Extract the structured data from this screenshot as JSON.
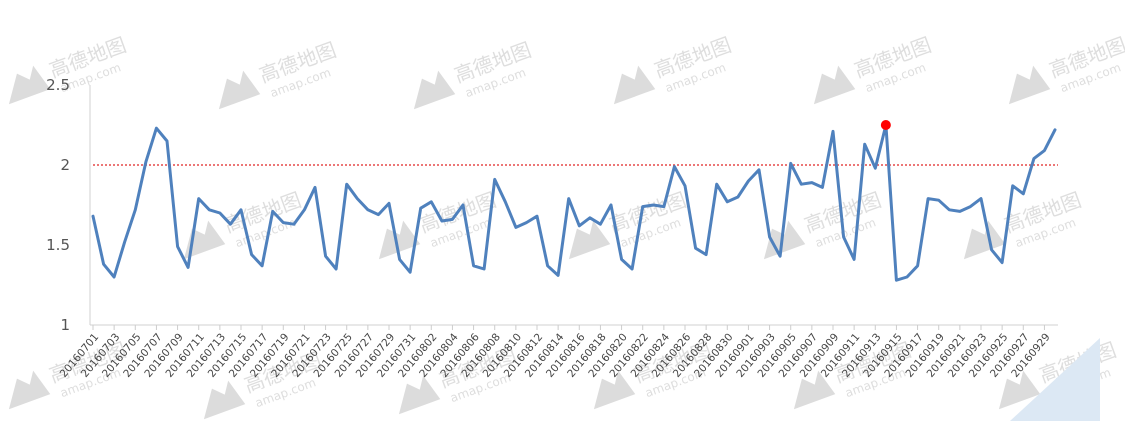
{
  "chart_data": {
    "type": "line",
    "title": "",
    "xlabel": "",
    "ylabel": "",
    "ylim": [
      1,
      2.5
    ],
    "yticks": [
      "1",
      "1.5",
      "2",
      "2.5"
    ],
    "grid": false,
    "legend": "none",
    "threshold": {
      "value": 2,
      "color": "#e02424",
      "style": "dotted"
    },
    "highlight": {
      "x": "20160914",
      "y": 2.25,
      "color": "#ff0000"
    },
    "line_color": "#4f81bd",
    "x": [
      "20160701",
      "20160702",
      "20160703",
      "20160704",
      "20160705",
      "20160706",
      "20160707",
      "20160708",
      "20160709",
      "20160710",
      "20160711",
      "20160712",
      "20160713",
      "20160714",
      "20160715",
      "20160716",
      "20160717",
      "20160718",
      "20160719",
      "20160720",
      "20160721",
      "20160722",
      "20160723",
      "20160724",
      "20160725",
      "20160726",
      "20160727",
      "20160728",
      "20160729",
      "20160730",
      "20160731",
      "20160801",
      "20160802",
      "20160803",
      "20160804",
      "20160805",
      "20160806",
      "20160807",
      "20160808",
      "20160809",
      "20160810",
      "20160811",
      "20160812",
      "20160813",
      "20160814",
      "20160815",
      "20160816",
      "20160817",
      "20160818",
      "20160819",
      "20160820",
      "20160821",
      "20160822",
      "20160823",
      "20160824",
      "20160825",
      "20160826",
      "20160827",
      "20160828",
      "20160829",
      "20160830",
      "20160831",
      "20160901",
      "20160902",
      "20160903",
      "20160904",
      "20160905",
      "20160906",
      "20160907",
      "20160908",
      "20160909",
      "20160910",
      "20160911",
      "20160912",
      "20160913",
      "20160914",
      "20160915",
      "20160916",
      "20160917",
      "20160918",
      "20160919",
      "20160920",
      "20160921",
      "20160922",
      "20160923",
      "20160924",
      "20160925",
      "20160926",
      "20160927",
      "20160928",
      "20160929",
      "20160930"
    ],
    "xtick_labels": [
      "20160701",
      "20160703",
      "20160705",
      "20160707",
      "20160709",
      "20160711",
      "20160713",
      "20160715",
      "20160717",
      "20160719",
      "20160721",
      "20160723",
      "20160725",
      "20160727",
      "20160729",
      "20160731",
      "20160802",
      "20160804",
      "20160806",
      "20160808",
      "20160810",
      "20160812",
      "20160814",
      "20160816",
      "20160818",
      "20160820",
      "20160822",
      "20160824",
      "20160826",
      "20160828",
      "20160830",
      "20160901",
      "20160903",
      "20160905",
      "20160907",
      "20160909",
      "20160911",
      "20160913",
      "20160915",
      "20160917",
      "20160919",
      "20160921",
      "20160923",
      "20160925",
      "20160927",
      "20160929"
    ],
    "series": [
      {
        "values": [
          1.68,
          1.38,
          1.3,
          1.52,
          1.72,
          2.02,
          2.23,
          2.15,
          1.49,
          1.36,
          1.79,
          1.72,
          1.7,
          1.63,
          1.72,
          1.44,
          1.37,
          1.71,
          1.64,
          1.63,
          1.72,
          1.86,
          1.43,
          1.35,
          1.88,
          1.79,
          1.72,
          1.69,
          1.76,
          1.41,
          1.33,
          1.73,
          1.77,
          1.65,
          1.66,
          1.75,
          1.37,
          1.35,
          1.91,
          1.77,
          1.61,
          1.64,
          1.68,
          1.37,
          1.31,
          1.79,
          1.62,
          1.67,
          1.63,
          1.75,
          1.41,
          1.35,
          1.74,
          1.75,
          1.74,
          1.99,
          1.87,
          1.48,
          1.44,
          1.88,
          1.77,
          1.8,
          1.9,
          1.97,
          1.55,
          1.43,
          2.01,
          1.88,
          1.89,
          1.86,
          2.21,
          1.55,
          1.41,
          2.13,
          1.98,
          2.25,
          1.28,
          1.3,
          1.37,
          1.79,
          1.78,
          1.72,
          1.71,
          1.74,
          1.79,
          1.47,
          1.39,
          1.87,
          1.82,
          2.04,
          2.09,
          2.22
        ]
      }
    ]
  },
  "watermarks": {
    "brand_cn": "高德地图",
    "brand_en": "amap.com"
  }
}
